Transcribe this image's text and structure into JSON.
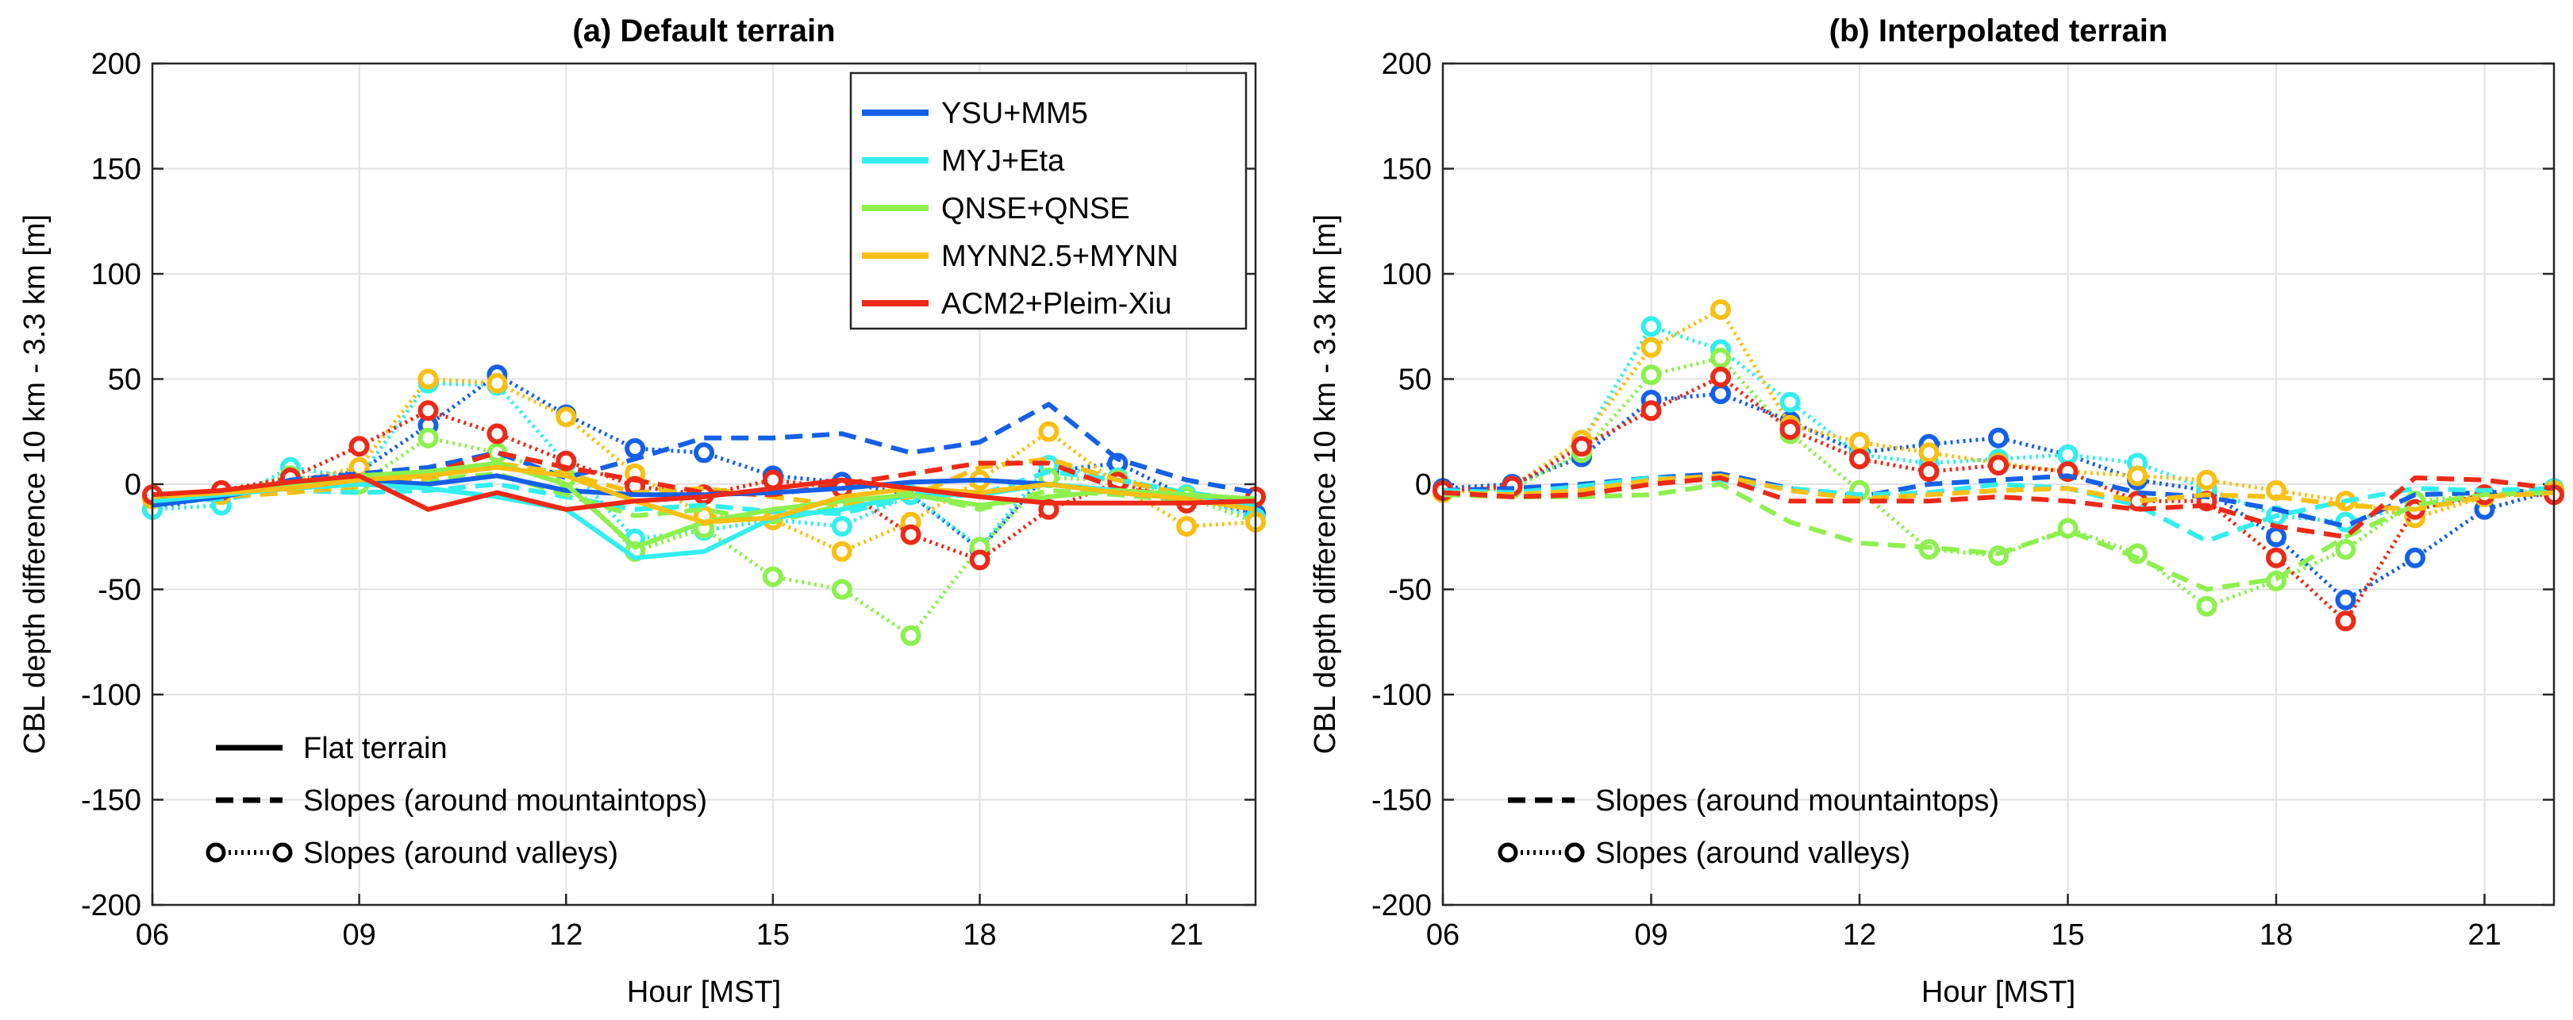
{
  "chart_data": [
    {
      "type": "line",
      "title": "(a) Default terrain",
      "xlabel": "Hour [MST]",
      "ylabel": "CBL depth difference 10 km - 3.3 km [m]",
      "xlim": [
        6,
        22
      ],
      "ylim": [
        -200,
        200
      ],
      "xticks": [
        6,
        9,
        12,
        15,
        18,
        21
      ],
      "xticklabels": [
        "06",
        "09",
        "12",
        "15",
        "18",
        "21"
      ],
      "yticks": [
        -200,
        -150,
        -100,
        -50,
        0,
        50,
        100,
        150,
        200
      ],
      "yticklabels": [
        "-200",
        "-150",
        "-100",
        "-50",
        "0",
        "50",
        "100",
        "150",
        "200"
      ],
      "grid": true,
      "x": [
        6,
        7,
        8,
        9,
        10,
        11,
        12,
        13,
        14,
        15,
        16,
        17,
        18,
        19,
        20,
        21,
        22
      ],
      "series": [
        {
          "model": "YSU+MM5",
          "style": "flat",
          "color": "#1560e6",
          "values": [
            -10,
            -6,
            0,
            2,
            0,
            4,
            -3,
            -5,
            -5,
            -4,
            -2,
            1,
            2,
            0,
            -4,
            -7,
            -9
          ]
        },
        {
          "model": "YSU+MM5",
          "style": "mountain",
          "color": "#1560e6",
          "values": [
            -9,
            -7,
            2,
            5,
            8,
            15,
            3,
            12,
            22,
            22,
            24,
            15,
            20,
            38,
            12,
            2,
            -4
          ]
        },
        {
          "model": "YSU+MM5",
          "style": "valley",
          "color": "#1560e6",
          "values": [
            -12,
            -5,
            2,
            6,
            28,
            52,
            33,
            17,
            15,
            4,
            1,
            -5,
            -31,
            6,
            10,
            -6,
            -14
          ]
        },
        {
          "model": "MYJ+Eta",
          "style": "flat",
          "color": "#33eeee",
          "values": [
            -8,
            -5,
            -2,
            0,
            -2,
            -6,
            -12,
            -35,
            -32,
            -16,
            -12,
            -5,
            -5,
            0,
            -3,
            -7,
            -10
          ]
        },
        {
          "model": "MYJ+Eta",
          "style": "mountain",
          "color": "#33eeee",
          "values": [
            -9,
            -7,
            -3,
            -4,
            -3,
            0,
            -6,
            -12,
            -10,
            -13,
            -14,
            -6,
            -5,
            6,
            2,
            -4,
            -8
          ]
        },
        {
          "model": "MYJ+Eta",
          "style": "valley",
          "color": "#33eeee",
          "values": [
            -12,
            -10,
            8,
            3,
            48,
            47,
            10,
            -26,
            -22,
            -17,
            -20,
            -5,
            -30,
            9,
            3,
            -5,
            -16
          ]
        },
        {
          "model": "QNSE+QNSE",
          "style": "flat",
          "color": "#8df04e",
          "values": [
            -6,
            -4,
            0,
            4,
            6,
            10,
            0,
            -30,
            -18,
            -12,
            -8,
            -5,
            -10,
            -6,
            -3,
            -5,
            -7
          ]
        },
        {
          "model": "QNSE+QNSE",
          "style": "mountain",
          "color": "#8df04e",
          "values": [
            -8,
            -6,
            -3,
            0,
            2,
            5,
            -5,
            -15,
            -12,
            -18,
            -10,
            -4,
            -12,
            -3,
            -5,
            -8,
            -10
          ]
        },
        {
          "model": "QNSE+QNSE",
          "style": "valley",
          "color": "#8df04e",
          "values": [
            -7,
            -4,
            4,
            0,
            22,
            15,
            3,
            -32,
            -21,
            -44,
            -50,
            -72,
            -30,
            3,
            2,
            -6,
            -18
          ]
        },
        {
          "model": "MYNN2.5+MYNN",
          "style": "flat",
          "color": "#f9bf12",
          "values": [
            -6,
            -4,
            -2,
            2,
            4,
            8,
            4,
            -8,
            -18,
            -16,
            -6,
            -2,
            -4,
            0,
            -4,
            -7,
            -12
          ]
        },
        {
          "model": "MYNN2.5+MYNN",
          "style": "mountain",
          "color": "#f9bf12",
          "values": [
            -7,
            -6,
            -4,
            -1,
            3,
            10,
            5,
            -4,
            -2,
            -6,
            -10,
            -6,
            8,
            12,
            2,
            -5,
            -9
          ]
        },
        {
          "model": "MYNN2.5+MYNN",
          "style": "valley",
          "color": "#f9bf12",
          "values": [
            -7,
            -5,
            1,
            8,
            50,
            48,
            32,
            5,
            -15,
            -17,
            -32,
            -18,
            2,
            25,
            0,
            -20,
            -18
          ]
        },
        {
          "model": "ACM2+Pleim-Xiu",
          "style": "flat",
          "color": "#ec2a17",
          "values": [
            -5,
            -3,
            1,
            4,
            -12,
            -4,
            -12,
            -8,
            -6,
            -2,
            2,
            -2,
            -6,
            -9,
            -9,
            -9,
            -8
          ]
        },
        {
          "model": "ACM2+Pleim-Xiu",
          "style": "mountain",
          "color": "#ec2a17",
          "values": [
            -6,
            -5,
            -2,
            2,
            5,
            15,
            8,
            2,
            -4,
            -5,
            0,
            5,
            10,
            10,
            -2,
            -6,
            -8
          ]
        },
        {
          "model": "ACM2+Pleim-Xiu",
          "style": "valley",
          "color": "#ec2a17",
          "values": [
            -5,
            -3,
            3,
            18,
            35,
            24,
            11,
            -1,
            -5,
            2,
            -2,
            -24,
            -36,
            -12,
            1,
            -9,
            -6
          ]
        }
      ]
    },
    {
      "type": "line",
      "title": "(b) Interpolated terrain",
      "xlabel": "Hour [MST]",
      "ylabel": "CBL depth difference 10 km - 3.3 km [m]",
      "xlim": [
        6,
        22
      ],
      "ylim": [
        -200,
        200
      ],
      "xticks": [
        6,
        9,
        12,
        15,
        18,
        21
      ],
      "xticklabels": [
        "06",
        "09",
        "12",
        "15",
        "18",
        "21"
      ],
      "yticks": [
        -200,
        -150,
        -100,
        -50,
        0,
        50,
        100,
        150,
        200
      ],
      "yticklabels": [
        "-200",
        "-150",
        "-100",
        "-50",
        "0",
        "50",
        "100",
        "150",
        "200"
      ],
      "grid": true,
      "x": [
        6,
        7,
        8,
        9,
        10,
        11,
        12,
        13,
        14,
        15,
        16,
        17,
        18,
        19,
        20,
        21,
        22
      ],
      "series": [
        {
          "model": "YSU+MM5",
          "style": "mountain",
          "color": "#1560e6",
          "values": [
            -3,
            -2,
            0,
            3,
            5,
            -2,
            -6,
            0,
            2,
            4,
            -4,
            -6,
            -12,
            -20,
            -5,
            -4,
            -3
          ]
        },
        {
          "model": "YSU+MM5",
          "style": "valley",
          "color": "#1560e6",
          "values": [
            -2,
            0,
            13,
            40,
            43,
            30,
            15,
            19,
            22,
            14,
            2,
            -3,
            -25,
            -55,
            -35,
            -12,
            -3
          ]
        },
        {
          "model": "MYJ+Eta",
          "style": "mountain",
          "color": "#33eeee",
          "values": [
            -3,
            -4,
            -1,
            3,
            2,
            -2,
            -5,
            -4,
            0,
            -2,
            -10,
            -27,
            -15,
            -8,
            -2,
            -3,
            -2
          ]
        },
        {
          "model": "MYJ+Eta",
          "style": "valley",
          "color": "#33eeee",
          "values": [
            -3,
            -1,
            20,
            75,
            64,
            39,
            14,
            10,
            12,
            14,
            10,
            -2,
            -15,
            -18,
            -10,
            -6,
            -2
          ]
        },
        {
          "model": "QNSE+QNSE",
          "style": "mountain",
          "color": "#8df04e",
          "values": [
            -5,
            -6,
            -6,
            -5,
            0,
            -18,
            -28,
            -30,
            -33,
            -22,
            -35,
            -50,
            -45,
            -25,
            -10,
            -5,
            -4
          ]
        },
        {
          "model": "QNSE+QNSE",
          "style": "valley",
          "color": "#8df04e",
          "values": [
            -4,
            -2,
            15,
            52,
            60,
            24,
            -3,
            -31,
            -34,
            -21,
            -33,
            -58,
            -46,
            -31,
            -8,
            -5,
            -3
          ]
        },
        {
          "model": "MYNN2.5+MYNN",
          "style": "mountain",
          "color": "#f9bf12",
          "values": [
            -4,
            -5,
            -3,
            2,
            4,
            -3,
            -7,
            -5,
            -3,
            -2,
            -8,
            -5,
            -6,
            -10,
            -12,
            -6,
            -4
          ]
        },
        {
          "model": "MYNN2.5+MYNN",
          "style": "valley",
          "color": "#f9bf12",
          "values": [
            -4,
            -1,
            21,
            65,
            83,
            28,
            20,
            15,
            10,
            6,
            4,
            2,
            -3,
            -8,
            -16,
            -6,
            -3
          ]
        },
        {
          "model": "ACM2+Pleim-Xiu",
          "style": "mountain",
          "color": "#ec2a17",
          "values": [
            -4,
            -6,
            -5,
            0,
            3,
            -8,
            -8,
            -8,
            -6,
            -8,
            -12,
            -10,
            -20,
            -25,
            3,
            2,
            -2
          ]
        },
        {
          "model": "ACM2+Pleim-Xiu",
          "style": "valley",
          "color": "#ec2a17",
          "values": [
            -3,
            -1,
            18,
            35,
            51,
            26,
            12,
            6,
            9,
            6,
            -8,
            -8,
            -35,
            -65,
            -12,
            -5,
            -5
          ]
        }
      ]
    }
  ],
  "legend_models": [
    {
      "label": "YSU+MM5",
      "color": "#1560e6"
    },
    {
      "label": "MYJ+Eta",
      "color": "#33eeee"
    },
    {
      "label": "QNSE+QNSE",
      "color": "#8df04e"
    },
    {
      "label": "MYNN2.5+MYNN",
      "color": "#f9bf12"
    },
    {
      "label": "ACM2+Pleim-Xiu",
      "color": "#ec2a17"
    }
  ],
  "legend_styles_a": [
    {
      "style": "flat",
      "label": "Flat terrain"
    },
    {
      "style": "mountain",
      "label": "Slopes (around mountaintops)"
    },
    {
      "style": "valley",
      "label": "Slopes (around valleys)"
    }
  ],
  "legend_styles_b": [
    {
      "style": "mountain",
      "label": "Slopes (around mountaintops)"
    },
    {
      "style": "valley",
      "label": "Slopes (around valleys)"
    }
  ]
}
